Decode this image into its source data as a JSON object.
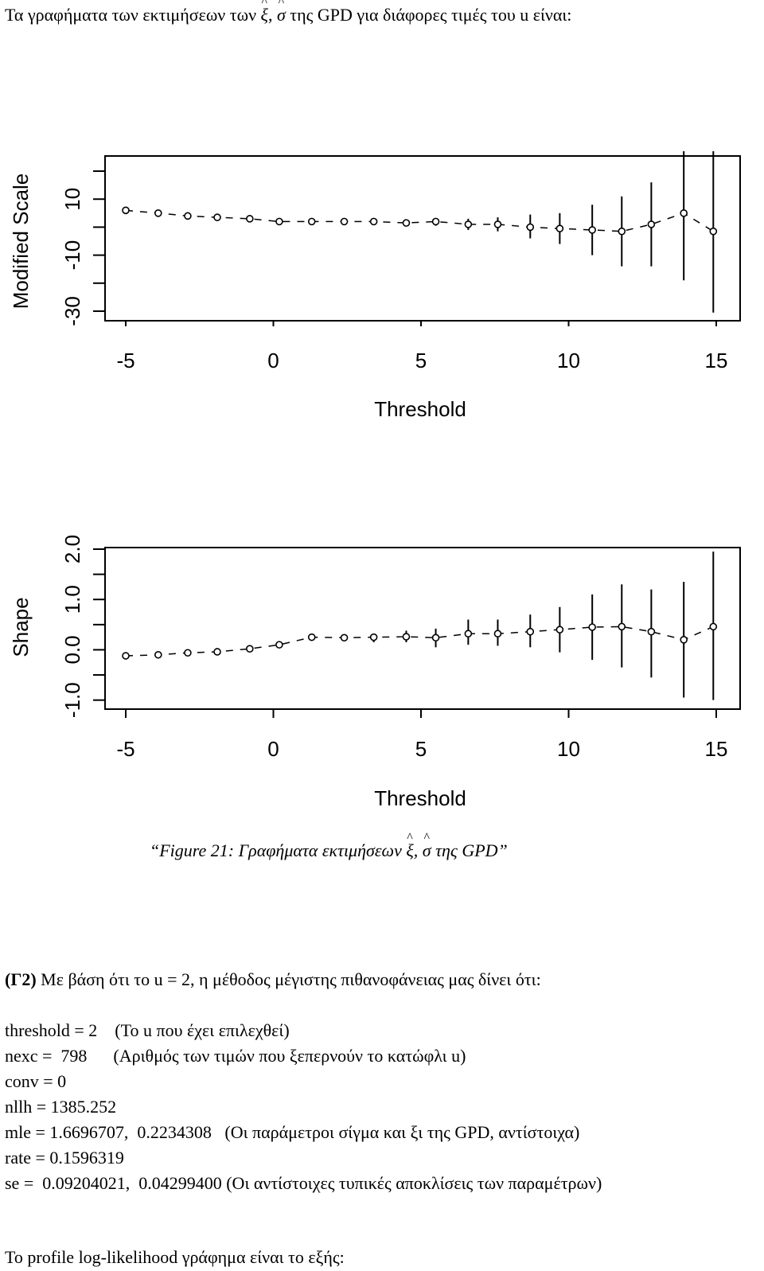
{
  "intro": {
    "text_before": "Τα γραφήματα των εκτιμήσεων των",
    "symbol_xi": "ξ",
    "comma": ",",
    "symbol_sigma": "σ",
    "text_after": "της GPD για διάφορες τιμές του u είναι:"
  },
  "chart_data": [
    {
      "type": "scatter",
      "title": "",
      "xlabel": "Threshold",
      "ylabel": "Modified Scale",
      "xlim": [
        -5.3,
        15.3
      ],
      "ylim": [
        -32,
        22
      ],
      "xticks": [
        "-5",
        "0",
        "5",
        "10",
        "15"
      ],
      "yticks": [
        "-30",
        "-10",
        "10"
      ],
      "ytick_values": [
        -30,
        -10,
        10
      ],
      "yminor_ticks": [
        -20,
        0,
        20
      ],
      "grid": false,
      "points": [
        {
          "x": -5.0,
          "y": 6.0,
          "lo": 6.0,
          "hi": 6.0
        },
        {
          "x": -3.9,
          "y": 5.0,
          "lo": 5.0,
          "hi": 5.0
        },
        {
          "x": -2.9,
          "y": 4.0,
          "lo": 4.0,
          "hi": 4.0
        },
        {
          "x": -1.9,
          "y": 3.5,
          "lo": 3.5,
          "hi": 3.5
        },
        {
          "x": -0.8,
          "y": 3.0,
          "lo": 3.0,
          "hi": 3.0
        },
        {
          "x": 0.2,
          "y": 2.0,
          "lo": 2.0,
          "hi": 2.0
        },
        {
          "x": 1.3,
          "y": 2.0,
          "lo": 2.0,
          "hi": 2.0
        },
        {
          "x": 2.4,
          "y": 2.0,
          "lo": 2.0,
          "hi": 2.0
        },
        {
          "x": 3.4,
          "y": 2.0,
          "lo": 2.0,
          "hi": 2.0
        },
        {
          "x": 4.5,
          "y": 1.5,
          "lo": 1.5,
          "hi": 1.5
        },
        {
          "x": 5.5,
          "y": 2.0,
          "lo": 0.5,
          "hi": 3.0
        },
        {
          "x": 6.6,
          "y": 1.0,
          "lo": -1.0,
          "hi": 3.0
        },
        {
          "x": 7.6,
          "y": 1.0,
          "lo": -1.5,
          "hi": 3.5
        },
        {
          "x": 8.7,
          "y": 0.0,
          "lo": -4.0,
          "hi": 4.5
        },
        {
          "x": 9.7,
          "y": -0.5,
          "lo": -6.0,
          "hi": 5.0
        },
        {
          "x": 10.8,
          "y": -1.0,
          "lo": -10.0,
          "hi": 8.0
        },
        {
          "x": 11.8,
          "y": -1.5,
          "lo": -14.0,
          "hi": 11.0
        },
        {
          "x": 12.8,
          "y": 1.0,
          "lo": -14.0,
          "hi": 16.0
        },
        {
          "x": 13.9,
          "y": 5.0,
          "lo": -19.0,
          "hi": 28.0
        },
        {
          "x": 14.9,
          "y": -1.5,
          "lo": -30.5,
          "hi": 27.5
        }
      ]
    },
    {
      "type": "scatter",
      "title": "",
      "xlabel": "Threshold",
      "ylabel": "Shape",
      "xlim": [
        -5.3,
        15.3
      ],
      "ylim": [
        -1.1,
        2.0
      ],
      "xticks": [
        "-5",
        "0",
        "5",
        "10",
        "15"
      ],
      "yticks": [
        "-1.0",
        "0.0",
        "1.0",
        "2.0"
      ],
      "ytick_values": [
        -1.0,
        0.0,
        1.0,
        2.0
      ],
      "yminor_ticks": [
        -0.5,
        0.5,
        1.5
      ],
      "grid": false,
      "points": [
        {
          "x": -5.0,
          "y": -0.12,
          "lo": -0.12,
          "hi": -0.12
        },
        {
          "x": -3.9,
          "y": -0.1,
          "lo": -0.1,
          "hi": -0.1
        },
        {
          "x": -2.9,
          "y": -0.06,
          "lo": -0.06,
          "hi": -0.06
        },
        {
          "x": -1.9,
          "y": -0.04,
          "lo": -0.04,
          "hi": -0.04
        },
        {
          "x": -0.8,
          "y": 0.02,
          "lo": 0.02,
          "hi": 0.02
        },
        {
          "x": 0.2,
          "y": 0.1,
          "lo": 0.1,
          "hi": 0.1
        },
        {
          "x": 1.3,
          "y": 0.25,
          "lo": 0.2,
          "hi": 0.3
        },
        {
          "x": 2.4,
          "y": 0.24,
          "lo": 0.18,
          "hi": 0.3
        },
        {
          "x": 3.4,
          "y": 0.25,
          "lo": 0.15,
          "hi": 0.32
        },
        {
          "x": 4.5,
          "y": 0.26,
          "lo": 0.15,
          "hi": 0.38
        },
        {
          "x": 5.5,
          "y": 0.24,
          "lo": 0.05,
          "hi": 0.42
        },
        {
          "x": 6.6,
          "y": 0.32,
          "lo": 0.1,
          "hi": 0.6
        },
        {
          "x": 7.6,
          "y": 0.32,
          "lo": 0.08,
          "hi": 0.6
        },
        {
          "x": 8.7,
          "y": 0.36,
          "lo": 0.05,
          "hi": 0.7
        },
        {
          "x": 9.7,
          "y": 0.4,
          "lo": -0.05,
          "hi": 0.85
        },
        {
          "x": 10.8,
          "y": 0.45,
          "lo": -0.2,
          "hi": 1.1
        },
        {
          "x": 11.8,
          "y": 0.46,
          "lo": -0.35,
          "hi": 1.3
        },
        {
          "x": 12.8,
          "y": 0.36,
          "lo": -0.55,
          "hi": 1.2
        },
        {
          "x": 13.9,
          "y": 0.2,
          "lo": -0.95,
          "hi": 1.35
        },
        {
          "x": 14.9,
          "y": 0.46,
          "lo": -1.0,
          "hi": 1.95
        }
      ]
    }
  ],
  "caption": {
    "text_before": "“Figure 21: Γραφήματα εκτιμήσεων",
    "symbol_xi": "ξ",
    "comma": ",",
    "symbol_sigma": "σ",
    "text_after": "της  GPD”"
  },
  "paragraph": {
    "bold": "(Γ2)",
    "rest": " Με βάση ότι το u = 2, η μέθοδος μέγιστης πιθανοφάνειας μας δίνει ότι:"
  },
  "output_lines": [
    "threshold = 2    (Το u που έχει επιλεχθεί)",
    "nexc =  798      (Αριθμός των τιμών που ξεπερνούν το κατώφλι u)",
    "conv = 0",
    "nllh = 1385.252",
    "mle = 1.6696707,  0.2234308   (Οι παράμετροι σίγμα και ξι της GPD, αντίστοιχα)",
    "rate = 0.1596319",
    "se =  0.09204021,  0.04299400 (Οι αντίστοιχες τυπικές αποκλίσεις των παραμέτρων)"
  ],
  "closing": "Το profile log-likelihood γράφημα είναι το εξής:"
}
